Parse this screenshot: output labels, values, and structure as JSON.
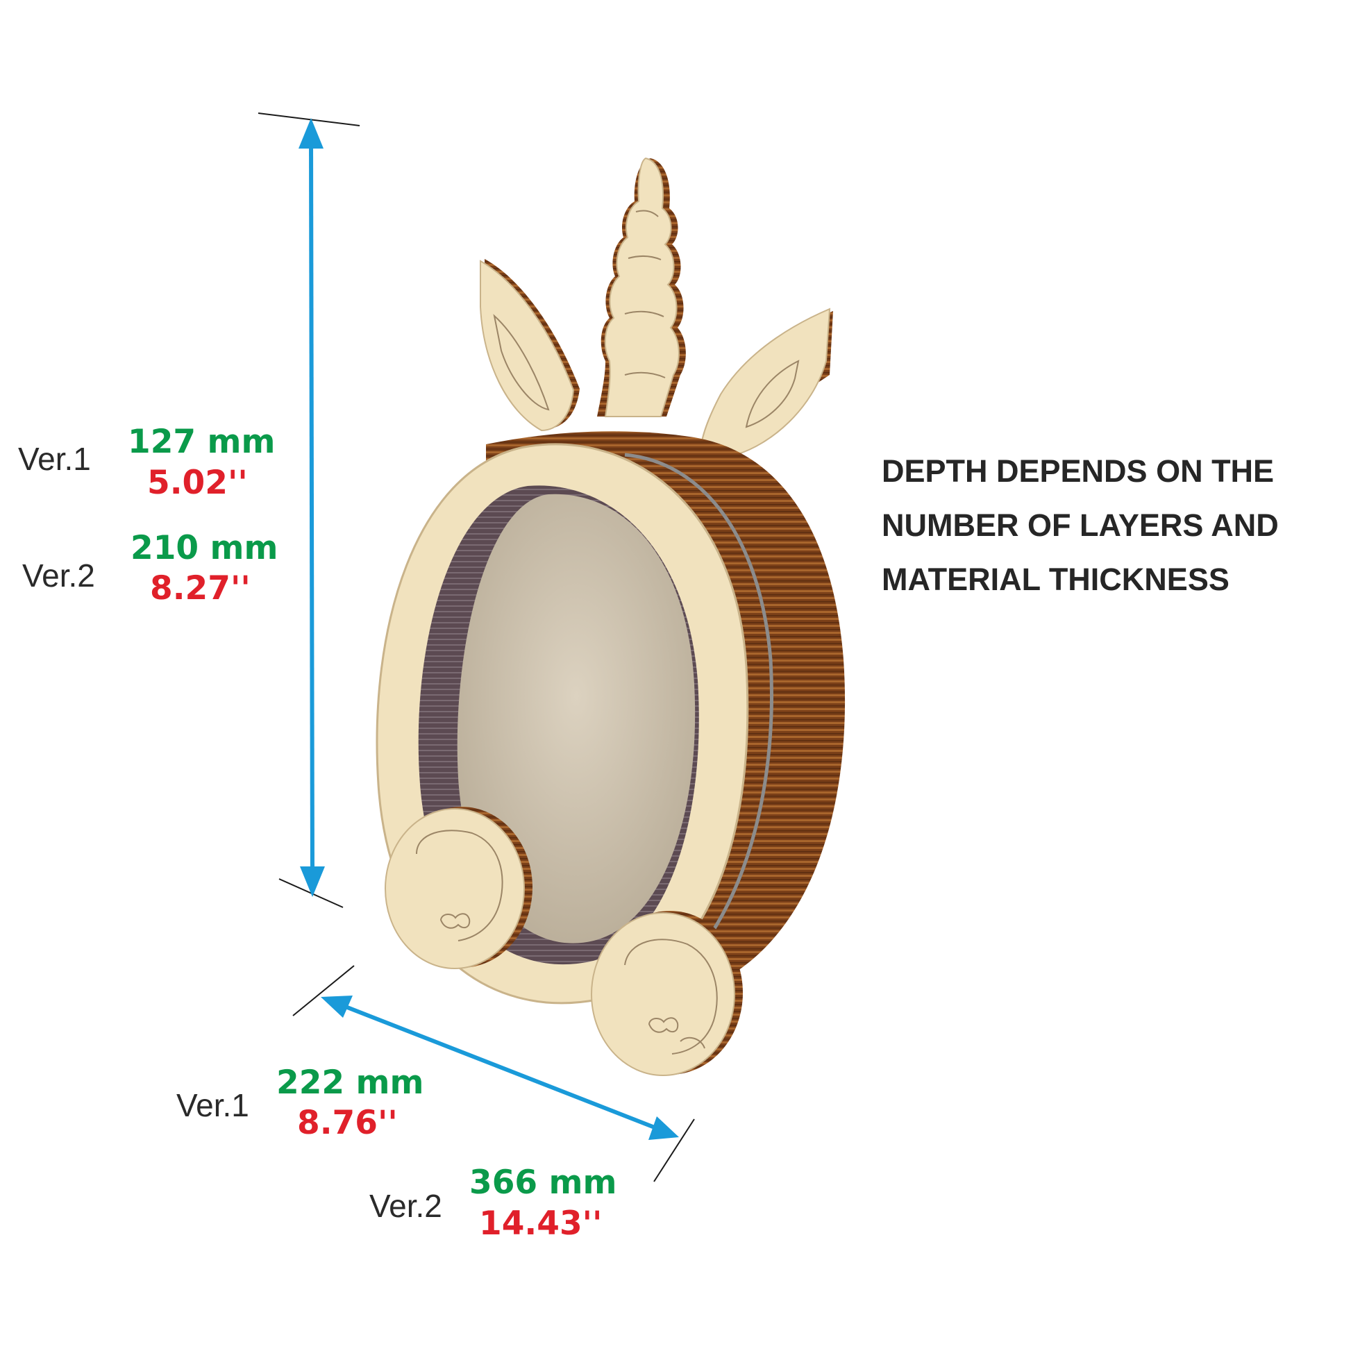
{
  "height_dimension": {
    "ver1": {
      "label": "Ver.1",
      "mm": "127 mm",
      "inch": "5.02''"
    },
    "ver2": {
      "label": "Ver.2",
      "mm": "210 mm",
      "inch": "8.27''"
    }
  },
  "width_dimension": {
    "ver1": {
      "label": "Ver.1",
      "mm": "222 mm",
      "inch": "8.76''"
    },
    "ver2": {
      "label": "Ver.2",
      "mm": "366 mm",
      "inch": "14.43''"
    }
  },
  "depth_note": {
    "lines": [
      "DEPTH DEPENDS ON THE",
      "NUMBER OF LAYERS AND",
      "MATERIAL THICKNESS"
    ]
  },
  "colors": {
    "arrow": "#1a9ad9",
    "metric": "#0a9a4a",
    "imperial": "#e0202a",
    "wood_light": "#f1e2be",
    "wood_dark": "#7a3f18"
  }
}
